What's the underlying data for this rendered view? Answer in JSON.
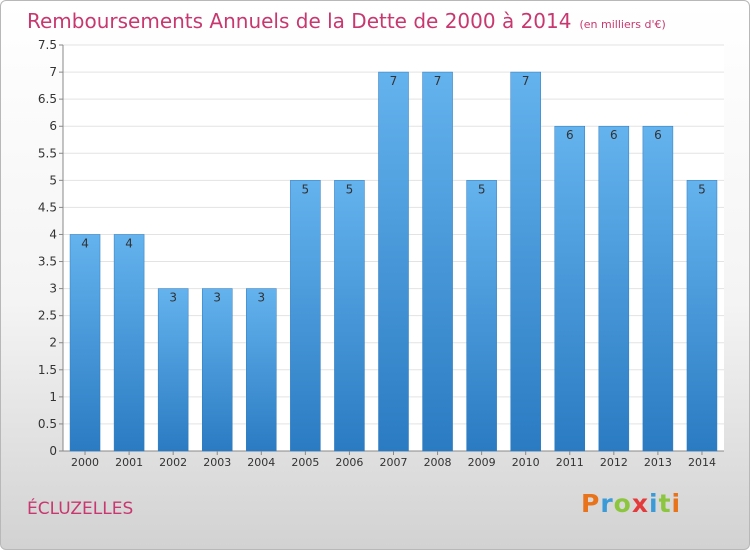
{
  "chart_data": {
    "type": "bar",
    "title": "Remboursements Annuels de la Dette de 2000 à 2014",
    "unit": "(en milliers d'€)",
    "categories": [
      "2000",
      "2001",
      "2002",
      "2003",
      "2004",
      "2005",
      "2006",
      "2007",
      "2008",
      "2009",
      "2010",
      "2011",
      "2012",
      "2013",
      "2014"
    ],
    "values": [
      4,
      4,
      3,
      3,
      3,
      5,
      5,
      7,
      7,
      5,
      7,
      6,
      6,
      6,
      5
    ],
    "ylim": [
      0,
      7.5
    ],
    "yticks": [
      "0",
      "0.5",
      "1",
      "1.5",
      "2",
      "2.5",
      "3",
      "3.5",
      "4",
      "4.5",
      "5",
      "5.5",
      "6",
      "6.5",
      "7",
      "7.5"
    ],
    "grid": true,
    "bar_color": "#3d8fd6",
    "label_color": "#c8386e"
  },
  "place": "ÉCLUZELLES",
  "logo": {
    "letters": [
      "P",
      "r",
      "o",
      "x",
      "i",
      "t",
      "i"
    ],
    "colors": [
      "#e8731a",
      "#3b9bd8",
      "#8cc63f",
      "#e33b3b",
      "#3b9bd8",
      "#8cc63f",
      "#e8731a"
    ]
  }
}
